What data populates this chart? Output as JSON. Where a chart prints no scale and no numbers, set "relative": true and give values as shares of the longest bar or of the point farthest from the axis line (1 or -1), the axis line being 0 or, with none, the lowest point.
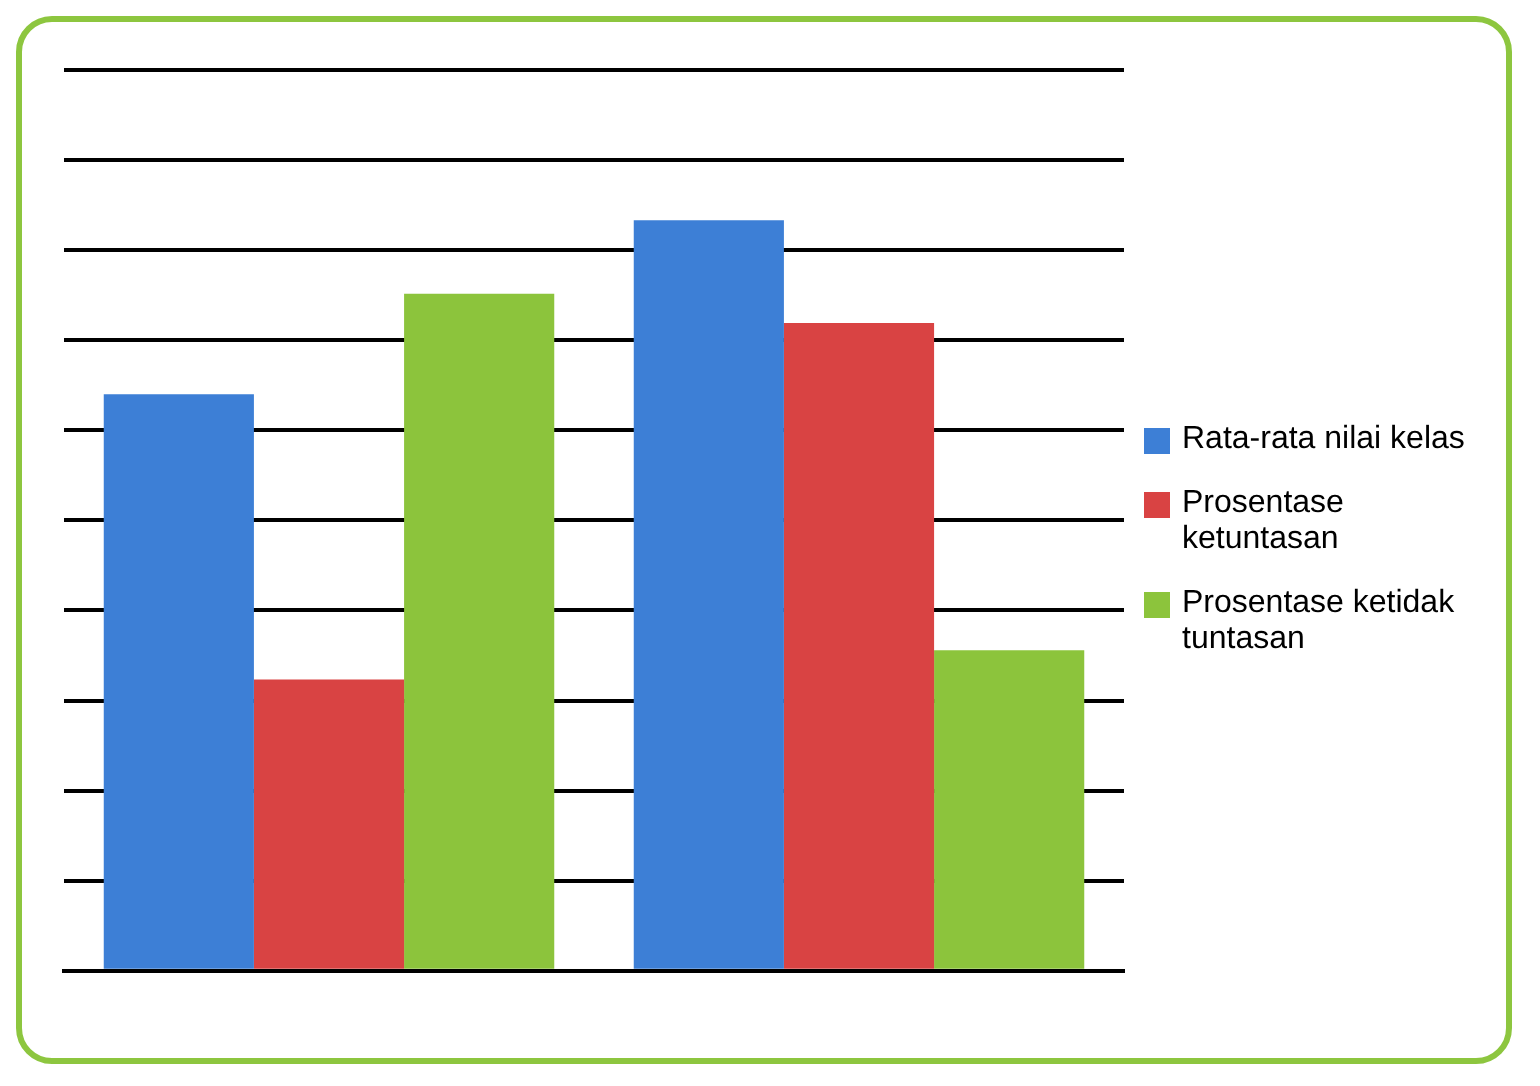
{
  "chart_data": {
    "type": "bar",
    "relative": true,
    "grid": "y",
    "legend": "right",
    "categories": [
      null,
      null
    ],
    "series": [
      {
        "name": "Rata-rata nilai kelas",
        "color": "#3d7fd6",
        "values": [
          0.768,
          1
        ]
      },
      {
        "name": "Prosentase ketuntasan",
        "color": "#d94343",
        "values": [
          0.388,
          0.863
        ]
      },
      {
        "name": "Prosentase ketidak tuntasan",
        "color": "#8cc43c",
        "values": [
          0.902,
          0.427
        ]
      }
    ]
  }
}
